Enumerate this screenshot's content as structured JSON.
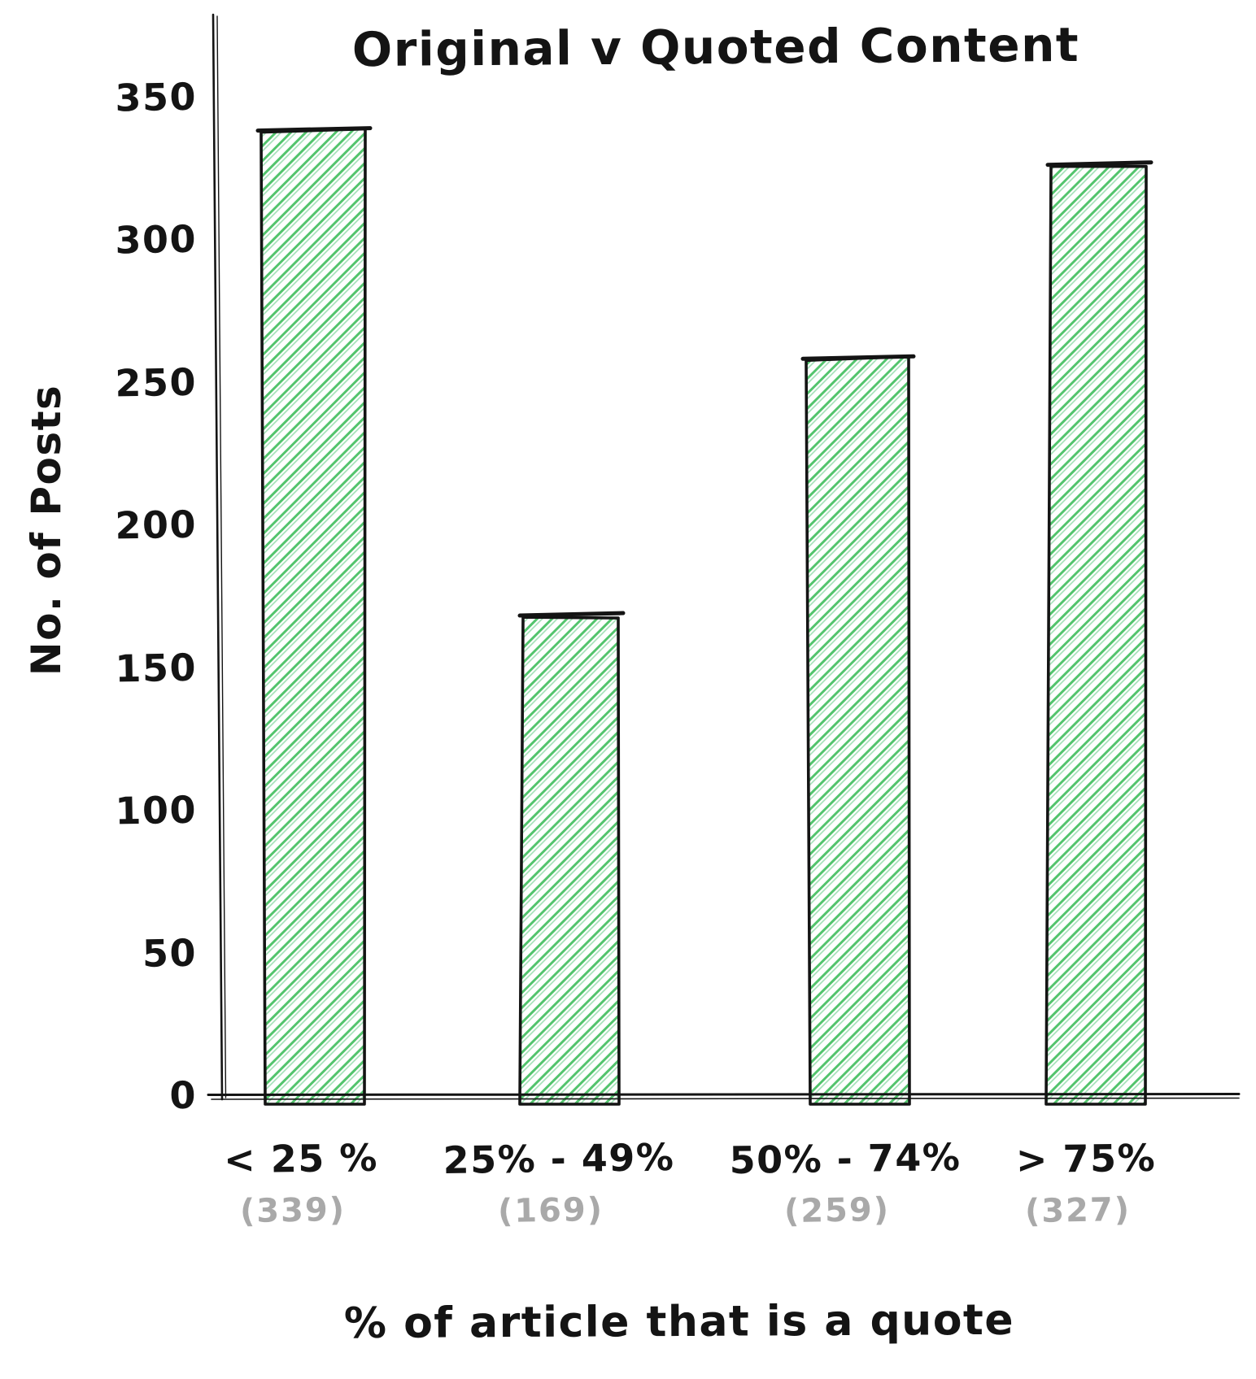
{
  "chart_data": {
    "type": "bar",
    "title": "Original v Quoted Content",
    "xlabel": "% of article that is a quote",
    "ylabel": "No. of Posts",
    "categories": [
      "< 25 %",
      "25% - 49%",
      "50% - 74%",
      "> 75%"
    ],
    "values": [
      339,
      169,
      259,
      327
    ],
    "count_labels": [
      "(339)",
      "(169)",
      "(259)",
      "(327)"
    ],
    "yticks": [
      0,
      50,
      100,
      150,
      200,
      250,
      300,
      350
    ],
    "ylim": [
      0,
      350
    ],
    "grid": false,
    "legend": false,
    "style": "hand-drawn sketch, bars filled with green diagonal hatching",
    "colors": {
      "bar_hatch": "#53c46d",
      "bar_hatch_light": "#9fdfb4",
      "bar_outline": "#141414",
      "axis": "#141414",
      "text": "#141414",
      "count_text": "#a9a9a9",
      "background": "#ffffff"
    }
  }
}
